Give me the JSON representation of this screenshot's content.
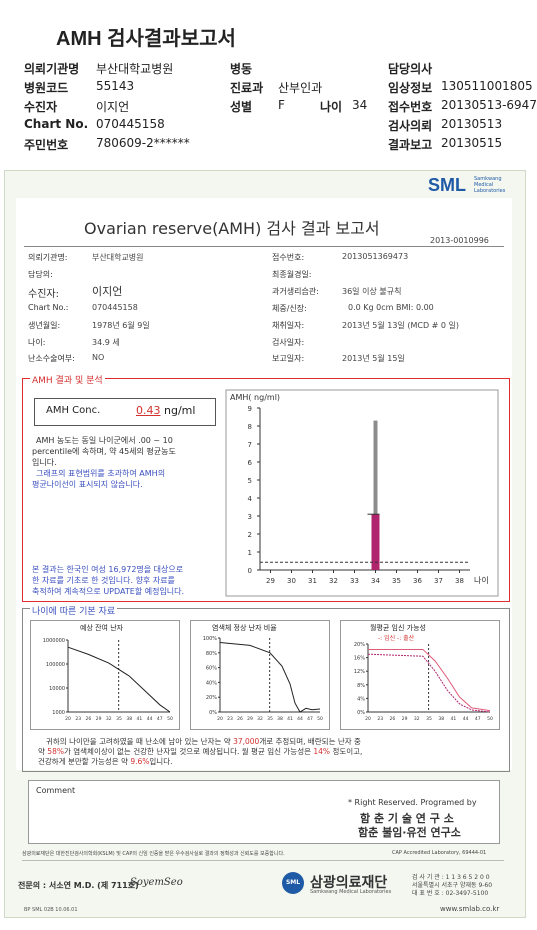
{
  "header": {
    "title": "AMH 검사결과보고서",
    "rows": [
      [
        {
          "label": "의뢰기관명",
          "value": "부산대학교병원"
        },
        {
          "label": "병동",
          "value": ""
        },
        {
          "label": "담당의사",
          "value": ""
        }
      ],
      [
        {
          "label": "병원코드",
          "value": "55143"
        },
        {
          "label": "진료과",
          "value": "산부인과"
        },
        {
          "label": "임상정보",
          "value": "130511001805"
        }
      ],
      [
        {
          "label": "수진자",
          "value": "이지언"
        },
        {
          "label": "성별",
          "value": "F"
        },
        {
          "label": "접수번호",
          "value": "20130513-6947"
        }
      ],
      [
        {
          "label": "Chart No.",
          "value": "070445158"
        },
        {
          "label": "",
          "value": ""
        },
        {
          "label": "검사의뢰",
          "value": "20130513"
        }
      ],
      [
        {
          "label": "주민번호",
          "value": "780609-2******"
        },
        {
          "label": "",
          "value": ""
        },
        {
          "label": "결과보고",
          "value": "20130515"
        }
      ]
    ],
    "age_label": "나이",
    "age_value": "34"
  },
  "report": {
    "logo": "SML",
    "logo_sub": "Samkwang Medical Laboratories",
    "title": "Ovarian reserve(AMH) 검사 결과 보고서",
    "doc_no": "2013-0010996",
    "left_fields": [
      {
        "label": "의뢰기관명:",
        "value": "부산대학교병원"
      },
      {
        "label": "담당의:",
        "value": ""
      },
      {
        "label": "수진자:",
        "value": "이지언"
      },
      {
        "label": "Chart No.:",
        "value": "070445158"
      },
      {
        "label": "생년월일:",
        "value": "1978년 6월 9일"
      },
      {
        "label": "나이:",
        "value": "34.9 세"
      },
      {
        "label": "난소수술여부:",
        "value": "NO"
      }
    ],
    "right_fields": [
      {
        "label": "접수번호:",
        "value": "20130513​69473"
      },
      {
        "label": "최종월경일:",
        "value": ""
      },
      {
        "label": "과거생리습관:",
        "value": "36일 이상 불규칙"
      },
      {
        "label": "체중/신장:",
        "value": "0.0 Kg      0cm    BMI:  0.00"
      },
      {
        "label": "채취일자:",
        "value": "2013년 5월 13일   (MCD # 0 일)"
      },
      {
        "label": "검사일자:",
        "value": ""
      },
      {
        "label": "보고일자:",
        "value": "2013년 5월 15일"
      }
    ],
    "amh": {
      "section_title": "AMH 결과 및 분석",
      "conc_label": "AMH Conc.",
      "conc_value": "0.43",
      "conc_unit": "ng/ml",
      "desc1": "AMH 농도는 동일 나이군에서  .00 ~  10",
      "desc2": "percentile에 속하며,  약   45세의 평균농도",
      "desc3": "입니다.",
      "desc4": "그래프의 표현범위를 초과하여 AMH의",
      "desc5": "평균나이선이 표시되지 않습니다.",
      "note1": "본 결과는 한국인 여성 16,972명을 대상으로",
      "note2": "한 자료를 기초로 한 것입니다. 향후 자료를",
      "note3": "축적하여 계속적으로 UPDATE할 예정입니다."
    },
    "age_section": {
      "title": "나이에 따른 기본 자료",
      "panel1_title": "예상 잔여 난자",
      "panel2_title": "염색체 정상 난자 비율",
      "panel3_title": "월평균 임신 가능성",
      "panel3_legend": "-: 임신 -: 출산",
      "summary1": "귀하의 나이만을 고려하였을 때 난소에 남아 있는 난자는 약",
      "summary1_val": "37,000",
      "summary1_end": "개로 추정되며, 배란되는 난자 중",
      "summary2_pre": "약",
      "summary2_val": "58%",
      "summary2_mid": "가 염색체이상이 없는 건강한 난자일 것으로 예상됩니다. 월 평균 임신 가능성은",
      "summary2_val2": "14%",
      "summary2_end": "정도이고,",
      "summary3_pre": "건강하게 분만할 가능성은 약",
      "summary3_val": "9.6%",
      "summary3_end": "입니다."
    },
    "comment_label": "Comment",
    "rights": "* Right Reserved. Programed by",
    "lab1": "함 춘 기 술 연 구 소",
    "lab2": "함춘 불임·유전 연구소",
    "accred_left": "삼광의료재단은 대한진단검사의학회(KSLM) 및 CAP의 신임 인증을 받은 우수검사실로 결과의 정확성과 신뢰도를 보증합니다.",
    "accred_right": "CAP Accredited Laboratory, 69444-01",
    "doctor_label": "전문의 : 서소연 M.D. (제 711호)",
    "signature": "SoyemSeo",
    "foundation": "삼광의료재단",
    "foundation_sub": "Samkwang Medical Laboratories",
    "contact1": "검 사 기 관 : 1 1 3 6 5 2 0 0",
    "contact2": "서울특별시 서초구 양재동 9-60",
    "contact3": "대 표 번 호 : 02-3497-5100",
    "website": "www.smlab.co.kr",
    "form_no": "BP  SML  02B  10.06.01"
  },
  "chart_data": [
    {
      "type": "bar",
      "title": "",
      "ylabel": "AMH( ng/ml)",
      "xlabel": "나이",
      "categories": [
        "29",
        "30",
        "31",
        "32",
        "33",
        "34",
        "35",
        "36",
        "37",
        "38"
      ],
      "ylim": [
        0,
        9
      ],
      "series": [
        {
          "values": [
            null,
            null,
            null,
            null,
            null,
            3.1,
            null,
            null,
            null,
            null
          ]
        },
        {
          "values": [
            null,
            null,
            null,
            null,
            null,
            0.43,
            null,
            null,
            null,
            null
          ]
        }
      ],
      "range_high": 8.3,
      "reference_line": 0.43
    },
    {
      "type": "line",
      "title": "예상 잔여 난자",
      "y_ticks": [
        "1000000",
        "100000",
        "10000",
        "1000"
      ],
      "x_ticks": [
        "20",
        "23",
        "26",
        "29",
        "32",
        "35",
        "38",
        "41",
        "44",
        "47",
        "50"
      ]
    },
    {
      "type": "line",
      "title": "염색체 정상 난자 비율",
      "y_ticks": [
        "100%",
        "80%",
        "60%",
        "40%",
        "20%",
        "0%"
      ],
      "x_ticks": [
        "20",
        "23",
        "26",
        "29",
        "32",
        "35",
        "38",
        "41",
        "44",
        "47",
        "50"
      ]
    },
    {
      "type": "line",
      "title": "월평균 임신 가능성",
      "y_ticks": [
        "20%",
        "16%",
        "12%",
        "8%",
        "4%",
        "0%"
      ],
      "x_ticks": [
        "20",
        "23",
        "26",
        "29",
        "32",
        "35",
        "38",
        "41",
        "44",
        "47",
        "50"
      ]
    }
  ],
  "colors": {
    "accent": "#e02c2c",
    "bar_gray": "#8c8c8c",
    "bar_magenta": "#b0246e",
    "blue_text": "#3a4fc0",
    "logo_blue": "#1f5aa6"
  }
}
